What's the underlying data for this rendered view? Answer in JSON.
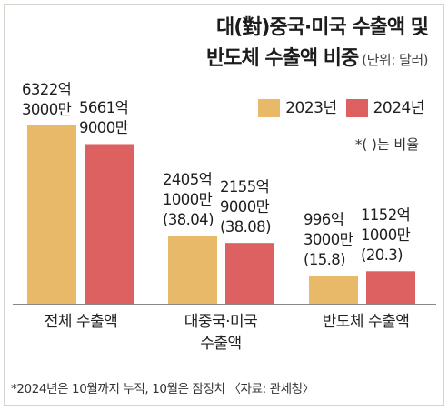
{
  "title_line1": "대(對)중국·미국 수출액 및",
  "title_line2": "반도체 수출액 비중",
  "unit": "(단위: 달러)",
  "legend": [
    {
      "label": "2023년",
      "color": "#e8b968"
    },
    {
      "label": "2024년",
      "color": "#de6161"
    }
  ],
  "ratio_note": "*(   )는 비율",
  "footnote": "*2024년은 10월까지 누적, 10월은 잠정치 〈자료: 관세청〉",
  "chart_data": {
    "type": "bar",
    "title": "대(對)중국·미국 수출액 및 반도체 수출액 비중",
    "ylabel": "",
    "unit": "달러",
    "categories": [
      "전체 수출액",
      "대중국·미국 수출액",
      "반도체 수출액"
    ],
    "series": [
      {
        "name": "2023년",
        "color": "#e8b968",
        "values": [
          632230000000,
          240510000000,
          99630000000
        ],
        "labels": [
          [
            "6322억",
            "3000만"
          ],
          [
            "2405억",
            "1000만",
            "(38.04)"
          ],
          [
            "996억",
            "3000만",
            "(15.8)"
          ]
        ]
      },
      {
        "name": "2024년",
        "color": "#de6161",
        "values": [
          566190000000,
          215590000000,
          115210000000
        ],
        "labels": [
          [
            "5661억",
            "9000만"
          ],
          [
            "2155억",
            "9000만",
            "(38.08)"
          ],
          [
            "1152억",
            "1000만",
            "(20.3)"
          ]
        ]
      }
    ]
  }
}
